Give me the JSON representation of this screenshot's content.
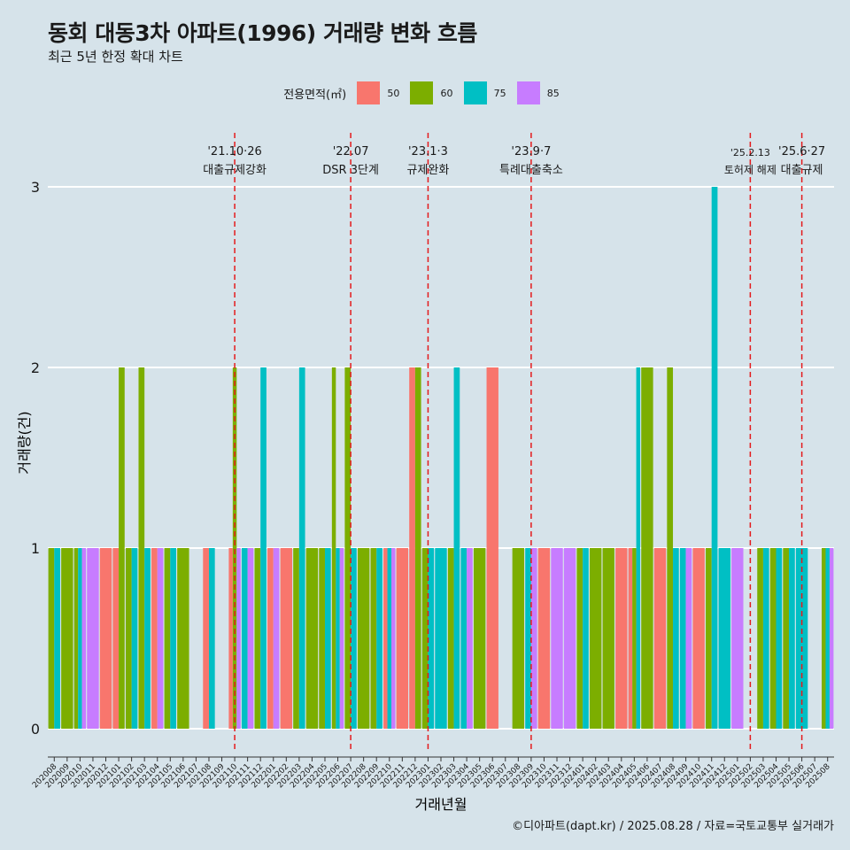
{
  "chart_data": {
    "type": "bar",
    "title": "동회 대동3차 아파트(1996) 거래량 변화 흐름",
    "subtitle": "최근 5년 한정 확대 차트",
    "xlabel": "거래년월",
    "ylabel": "거래량(건)",
    "ylim": [
      0,
      3
    ],
    "y_ticks": [
      0,
      1,
      2,
      3
    ],
    "grid": true,
    "legend": {
      "title": "전용면적(㎡)",
      "position": "top"
    },
    "colors": {
      "50": "#f8766d",
      "60": "#7cae00",
      "75": "#00bfc4",
      "85": "#c77cff"
    },
    "categories": [
      "202008",
      "202009",
      "202010",
      "202011",
      "202012",
      "202101",
      "202102",
      "202103",
      "202104",
      "202105",
      "202106",
      "202107",
      "202108",
      "202109",
      "202110",
      "202111",
      "202112",
      "202201",
      "202202",
      "202203",
      "202204",
      "202205",
      "202206",
      "202207",
      "202208",
      "202209",
      "202210",
      "202211",
      "202212",
      "202301",
      "202302",
      "202303",
      "202304",
      "202305",
      "202306",
      "202307",
      "202308",
      "202309",
      "202310",
      "202311",
      "202312",
      "202401",
      "202402",
      "202403",
      "202404",
      "202405",
      "202406",
      "202407",
      "202408",
      "202409",
      "202410",
      "202411",
      "202412",
      "202501",
      "202502",
      "202503",
      "202504",
      "202505",
      "202506",
      "202507",
      "202508"
    ],
    "series": [
      {
        "name": "50",
        "values": [
          0,
          0,
          0,
          0,
          1,
          1,
          0,
          0,
          1,
          0,
          0,
          0,
          1,
          0,
          1,
          0,
          0,
          1,
          1,
          0,
          0,
          0,
          0,
          0,
          0,
          0,
          1,
          1,
          2,
          0,
          0,
          0,
          0,
          0,
          2,
          0,
          0,
          0,
          1,
          0,
          0,
          0,
          0,
          0,
          1,
          1,
          0,
          1,
          0,
          0,
          1,
          0,
          0,
          0,
          0,
          0,
          0,
          0,
          0,
          0,
          0
        ]
      },
      {
        "name": "60",
        "values": [
          1,
          1,
          1,
          0,
          0,
          2,
          1,
          2,
          0,
          1,
          1,
          0,
          0,
          0,
          2,
          0,
          1,
          0,
          0,
          1,
          1,
          1,
          2,
          2,
          1,
          1,
          0,
          0,
          2,
          1,
          0,
          1,
          0,
          1,
          0,
          0,
          1,
          0,
          0,
          0,
          0,
          1,
          1,
          1,
          0,
          1,
          2,
          0,
          2,
          0,
          0,
          1,
          0,
          0,
          0,
          1,
          1,
          1,
          0,
          0,
          1
        ]
      },
      {
        "name": "75",
        "values": [
          1,
          0,
          1,
          0,
          0,
          0,
          1,
          1,
          0,
          1,
          0,
          0,
          1,
          0,
          0,
          1,
          2,
          0,
          0,
          2,
          0,
          1,
          1,
          1,
          0,
          1,
          1,
          0,
          0,
          1,
          1,
          2,
          1,
          0,
          0,
          0,
          0,
          1,
          0,
          0,
          0,
          1,
          0,
          0,
          0,
          2,
          0,
          0,
          1,
          1,
          0,
          3,
          1,
          0,
          0,
          1,
          1,
          1,
          1,
          0,
          1
        ]
      },
      {
        "name": "85",
        "values": [
          0,
          0,
          1,
          1,
          0,
          0,
          0,
          0,
          1,
          0,
          0,
          0,
          0,
          0,
          1,
          1,
          0,
          1,
          0,
          0,
          0,
          0,
          1,
          0,
          0,
          0,
          1,
          0,
          0,
          0,
          0,
          0,
          1,
          0,
          0,
          0,
          0,
          1,
          0,
          1,
          1,
          0,
          0,
          0,
          0,
          0,
          0,
          0,
          0,
          1,
          0,
          0,
          0,
          1,
          0,
          0,
          0,
          0,
          0,
          0,
          1
        ]
      }
    ],
    "annotations": [
      {
        "category": "202110",
        "date": "'21.10·26",
        "label": "대출규제강화"
      },
      {
        "category": "202207",
        "date": "'22.07",
        "label": "DSR 3단계"
      },
      {
        "category": "202301",
        "date": "'23.1·3",
        "label": "규제완화"
      },
      {
        "category": "202309",
        "date": "'23.9·7",
        "label": "특례대출축소"
      },
      {
        "category": "202502",
        "date": "'25.2.13",
        "label": "토허제 해제"
      },
      {
        "category": "202506",
        "date": "'25.6·27",
        "label": "대출규제"
      }
    ]
  },
  "caption": "©디아파트(dapt.kr) / 2025.08.28 / 자료=국토교통부 실거래가"
}
